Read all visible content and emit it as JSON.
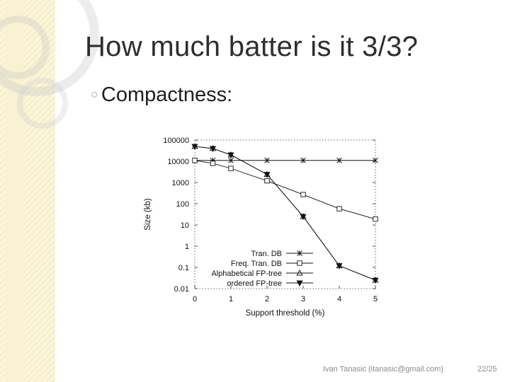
{
  "slide": {
    "title": "How much batter is it 3/3?",
    "bullet": "Compactness:",
    "footer_author": "Ivan Tanasic (itanasic@gmail.com)",
    "footer_page": "22/25"
  },
  "icons": {
    "bullet": "hollow-bullet-icon"
  },
  "colors": {
    "background": "#ffffff",
    "side_band": "#f7efc9",
    "title": "#2e2e2e",
    "footer": "#8a8a8a"
  },
  "chart_data": {
    "type": "line",
    "xlabel": "Support threshold (%)",
    "ylabel": "Size (kb)",
    "x_ticks": [
      "0",
      "1",
      "2",
      "3",
      "4",
      "5"
    ],
    "y_ticks": [
      "0.01",
      "0.1",
      "1",
      "10",
      "100",
      "1000",
      "10000",
      "100000"
    ],
    "y_scale": "log",
    "ylim": [
      0.01,
      100000
    ],
    "xlim": [
      0,
      5
    ],
    "legend_position": "bottom-center",
    "series": [
      {
        "name": "Tran. DB",
        "marker": "x",
        "x": [
          0,
          0.5,
          1,
          2,
          3,
          4,
          5
        ],
        "y": [
          11000,
          11000,
          11000,
          11000,
          11000,
          11000,
          11000
        ]
      },
      {
        "name": "Freq. Tran. DB",
        "marker": "square",
        "x": [
          0,
          0.5,
          1,
          2,
          3,
          4,
          5
        ],
        "y": [
          11000,
          8000,
          4600,
          1200,
          270,
          58,
          19
        ]
      },
      {
        "name": "Alphabetical FP-tree",
        "marker": "triangle",
        "x": [
          0,
          0.5,
          1,
          2,
          3,
          4,
          5
        ],
        "y": [
          50000,
          40000,
          20000,
          2400,
          25,
          0.12,
          0.025
        ]
      },
      {
        "name": "ordered FP-tree",
        "marker": "triangle-down",
        "x": [
          0,
          0.5,
          1,
          2,
          3,
          4,
          5
        ],
        "y": [
          50000,
          40000,
          20000,
          2400,
          25,
          0.12,
          0.025
        ]
      }
    ]
  }
}
